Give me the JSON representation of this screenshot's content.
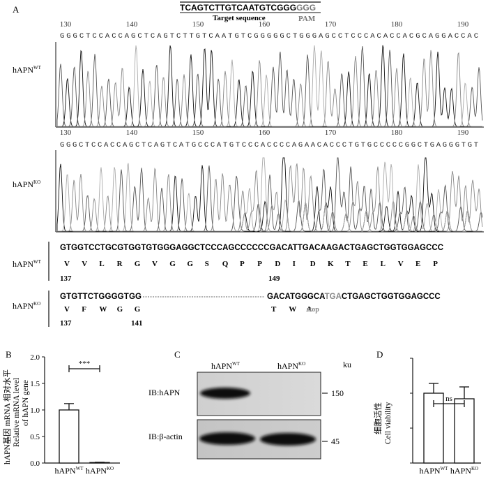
{
  "panels": {
    "A": "A",
    "B": "B",
    "C": "C",
    "D": "D"
  },
  "panel_a": {
    "target_seq": "TCAGTCTTGTCAATGTCGGG",
    "pam_seq": "GGG",
    "target_label": "Target sequence",
    "pam_label": "PAM",
    "wt_ruler": [
      "130",
      "140",
      "150",
      "160",
      "170",
      "180",
      "190"
    ],
    "wt_bases": "GGGCTCCACCAGCTCAGTCTTGTCAATGTCGGGGGCTGGGAGCCTCCCACACCACGCAGGACCAC",
    "ko_ruler": [
      "130",
      "140",
      "150",
      "160",
      "170",
      "180",
      "190"
    ],
    "ko_bases": "GGGCTCCACCAGCTCAGTCATGCCCATGTCCCACCCCAGAACACCCTGTGCCCCCGGCTGAGGGTGT",
    "wt_label": "hAPN",
    "wt_sup": "WT",
    "ko_label": "hAPN",
    "ko_sup": "KO",
    "wt_seq": "GTGGTCCTGCGTGGTGTGGGAGGCTCCCAGCCCCCCGACATTGACAAGACTGAGCTGGTGGAGCCC",
    "wt_aa": [
      "V",
      "V",
      "L",
      "R",
      "G",
      "V",
      "G",
      "G",
      "S",
      "Q",
      "P",
      "P",
      "D",
      "I",
      "D",
      "K",
      "T",
      "E",
      "L",
      "V",
      "E",
      "P"
    ],
    "wt_pos_start": "137",
    "wt_pos_mid": "149",
    "ko_seq_left": "GTGTTCTGGGGTGG",
    "ko_seq_right_a": "GACATGGGCA",
    "ko_seq_stop": "TGA",
    "ko_seq_right_b": "CTGAGCTGGTGGAGCCC",
    "ko_aa": [
      "V",
      "F",
      "W",
      "G",
      "G"
    ],
    "ko_aa_right": [
      "T",
      "W",
      "A"
    ],
    "stop_label": "stop",
    "ko_pos_start": "137",
    "ko_pos_mid": "141"
  },
  "panel_b": {
    "ylabel_cn": "hAPN基因 mRNA 相对水平",
    "ylabel_en1": "Relative mRNA level",
    "ylabel_en2": "of hAPN gene",
    "yticks": [
      "0.0",
      "0.5",
      "1.0",
      "1.5",
      "2.0"
    ],
    "significance": "***"
  },
  "panel_c": {
    "col_wt": "hAPN",
    "col_wt_sup": "WT",
    "col_ko": "hAPN",
    "col_ko_sup": "KO",
    "unit": "ku",
    "row1": "IB:hAPN",
    "row2": "IB:β-actin",
    "marker1": "150",
    "marker2": "45"
  },
  "panel_d": {
    "ylabel_cn": "细胞活性",
    "ylabel_en": "Cell viability",
    "significance": "ns"
  },
  "chart_data": [
    {
      "type": "bar",
      "panel": "B",
      "categories": [
        "hAPNWT",
        "hAPNKO"
      ],
      "values": [
        1.0,
        0.01
      ],
      "errors": [
        0.12,
        0.005
      ],
      "ylim": [
        0,
        2.0
      ],
      "ylabel": "Relative mRNA level of hAPN gene",
      "annotation": "***"
    },
    {
      "type": "bar",
      "panel": "D",
      "categories": [
        "hAPNWT",
        "hAPNKO"
      ],
      "values": [
        100,
        92
      ],
      "errors": [
        14,
        17
      ],
      "ylim": [
        0,
        150
      ],
      "ylabel": "Cell viability",
      "annotation": "ns"
    }
  ]
}
